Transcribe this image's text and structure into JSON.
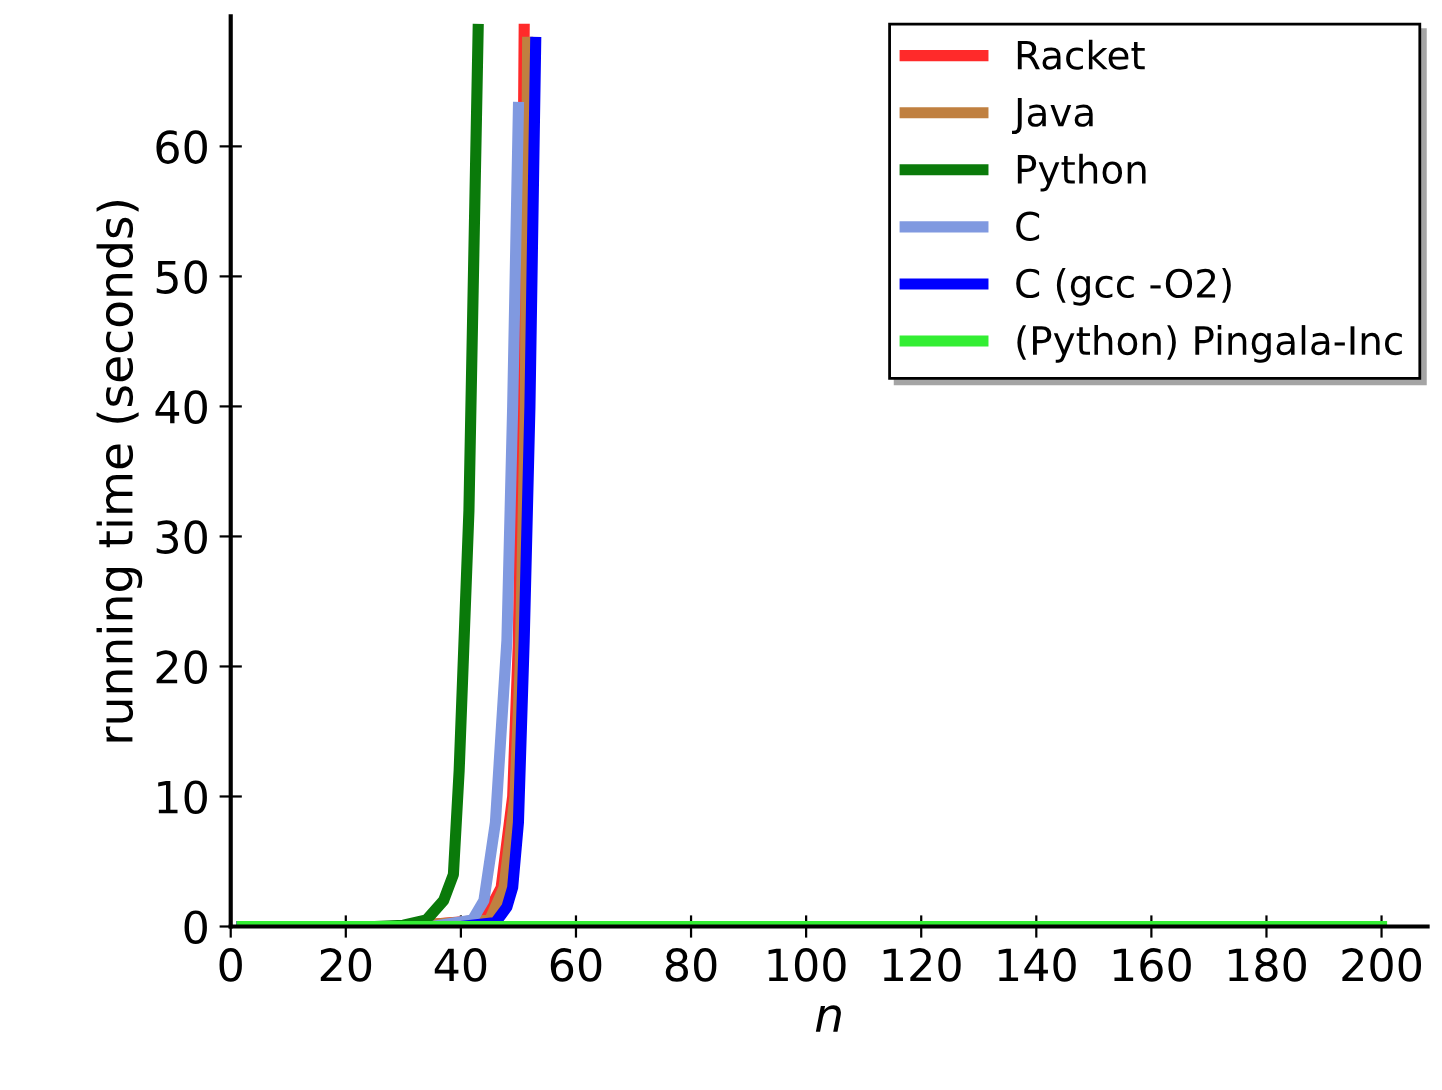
{
  "chart_data": {
    "type": "line",
    "xlabel": "n",
    "ylabel": "running time (seconds)",
    "xlim": [
      0,
      208
    ],
    "ylim": [
      0,
      70
    ],
    "xticks": [
      0,
      20,
      40,
      60,
      80,
      100,
      120,
      140,
      160,
      180,
      200
    ],
    "yticks": [
      0,
      10,
      20,
      30,
      40,
      50,
      60
    ],
    "grid": false,
    "legend": "top right",
    "marker": "none",
    "line_style": "solid",
    "series": [
      {
        "name": "Racket",
        "color": "#ff2a2a",
        "x": [
          2,
          30,
          44,
          47,
          49,
          50,
          50.6,
          51
        ],
        "values": [
          0,
          0,
          0.5,
          3,
          10,
          22,
          45,
          69
        ]
      },
      {
        "name": "Java",
        "color": "#c08040",
        "x": [
          2,
          30,
          45,
          47.5,
          49.4,
          50.3,
          51.2,
          51.6
        ],
        "values": [
          0,
          0,
          0.5,
          3,
          10,
          20,
          40,
          68
        ]
      },
      {
        "name": "Python",
        "color": "#0a7a0a",
        "x": [
          2,
          25,
          30,
          34,
          37,
          38.7,
          39.7,
          41.4,
          43
        ],
        "values": [
          0,
          0,
          0.1,
          0.5,
          2,
          4,
          12,
          32,
          69
        ]
      },
      {
        "name": "C",
        "color": "#8099e0",
        "x": [
          2,
          35,
          42,
          44,
          46,
          48,
          49,
          50
        ],
        "values": [
          0,
          0,
          0.5,
          2,
          8,
          22,
          40,
          63
        ]
      },
      {
        "name": "C (gcc -O2)",
        "color": "#0000ff",
        "x": [
          2,
          40,
          46,
          48,
          49,
          50,
          51,
          52,
          53
        ],
        "values": [
          0,
          0,
          0.3,
          1.5,
          3,
          8,
          22,
          40,
          68
        ]
      },
      {
        "name": "(Python) Pingala-Inc",
        "color": "#33ee33",
        "x": [
          2,
          200
        ],
        "values": [
          0,
          0
        ]
      }
    ]
  }
}
